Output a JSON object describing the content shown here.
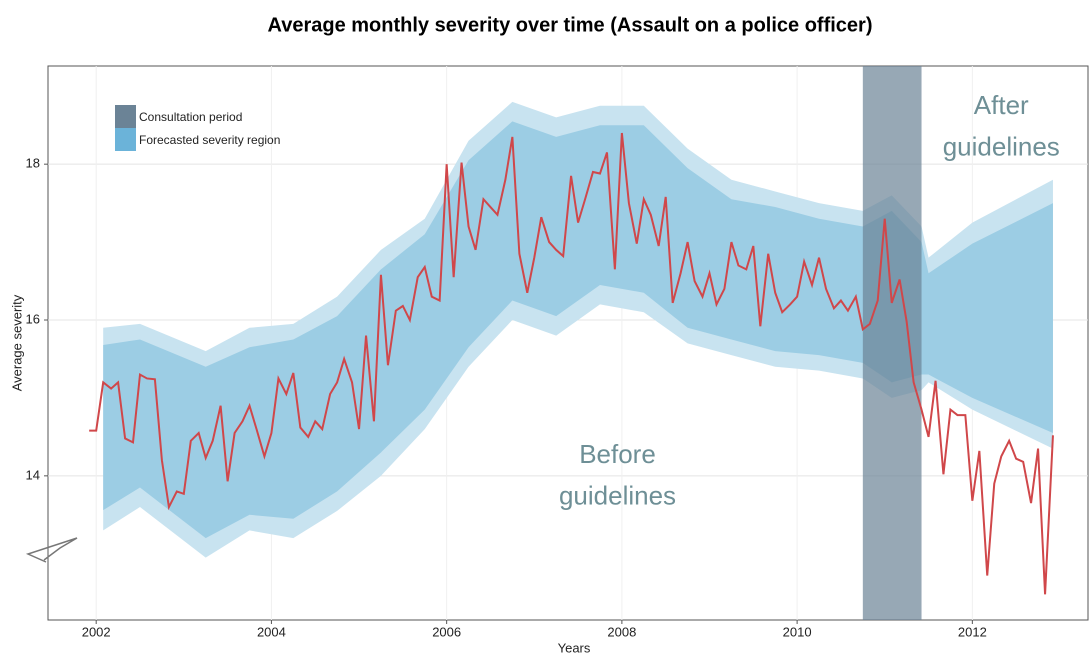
{
  "chart_data": {
    "type": "line",
    "title": "Average monthly severity over time (Assault on a police officer)",
    "xlabel": "Years",
    "ylabel": "Average severity",
    "xlim": [
      2001.45,
      2013.32
    ],
    "ylim": [
      12.15,
      19.26
    ],
    "xticks": [
      2002,
      2004,
      2006,
      2008,
      2010,
      2012
    ],
    "yticks": [
      14,
      16,
      18
    ],
    "grid": true,
    "color": "#d0474a",
    "x": [
      2001.92,
      2002.0,
      2002.08,
      2002.17,
      2002.25,
      2002.33,
      2002.42,
      2002.5,
      2002.58,
      2002.67,
      2002.75,
      2002.83,
      2002.92,
      2003.0,
      2003.08,
      2003.17,
      2003.25,
      2003.33,
      2003.42,
      2003.5,
      2003.58,
      2003.67,
      2003.75,
      2003.83,
      2003.92,
      2004.0,
      2004.08,
      2004.17,
      2004.25,
      2004.33,
      2004.42,
      2004.5,
      2004.58,
      2004.67,
      2004.75,
      2004.83,
      2004.92,
      2005.0,
      2005.08,
      2005.17,
      2005.25,
      2005.33,
      2005.42,
      2005.5,
      2005.58,
      2005.67,
      2005.75,
      2005.83,
      2005.92,
      2006.0,
      2006.08,
      2006.17,
      2006.25,
      2006.33,
      2006.42,
      2006.5,
      2006.58,
      2006.67,
      2006.75,
      2006.83,
      2006.92,
      2007.0,
      2007.08,
      2007.17,
      2007.25,
      2007.33,
      2007.42,
      2007.5,
      2007.58,
      2007.67,
      2007.75,
      2007.83,
      2007.92,
      2008.0,
      2008.08,
      2008.17,
      2008.25,
      2008.33,
      2008.42,
      2008.5,
      2008.58,
      2008.67,
      2008.75,
      2008.83,
      2008.92,
      2009.0,
      2009.08,
      2009.17,
      2009.25,
      2009.33,
      2009.42,
      2009.5,
      2009.58,
      2009.67,
      2009.75,
      2009.83,
      2009.92,
      2010.0,
      2010.08,
      2010.17,
      2010.25,
      2010.33,
      2010.42,
      2010.5,
      2010.58,
      2010.67,
      2010.75,
      2010.83,
      2010.92,
      2011.0,
      2011.08,
      2011.17,
      2011.25,
      2011.33,
      2011.42,
      2011.5,
      2011.58,
      2011.67,
      2011.75,
      2011.83,
      2011.92,
      2012.0,
      2012.08,
      2012.17,
      2012.25,
      2012.33,
      2012.42,
      2012.5,
      2012.58,
      2012.67,
      2012.75,
      2012.83,
      2012.92
    ],
    "values": [
      14.58,
      14.58,
      15.2,
      15.12,
      15.2,
      14.48,
      14.43,
      15.3,
      15.25,
      15.24,
      14.2,
      13.6,
      13.8,
      13.77,
      14.45,
      14.55,
      14.23,
      14.45,
      14.9,
      13.93,
      14.55,
      14.7,
      14.9,
      14.6,
      14.25,
      14.55,
      15.25,
      15.05,
      15.32,
      14.62,
      14.5,
      14.7,
      14.6,
      15.05,
      15.2,
      15.5,
      15.2,
      14.6,
      15.8,
      14.7,
      16.58,
      15.42,
      16.12,
      16.18,
      16.0,
      16.55,
      16.68,
      16.3,
      16.25,
      18.0,
      16.55,
      18.02,
      17.2,
      16.9,
      17.55,
      17.45,
      17.35,
      17.8,
      18.35,
      16.85,
      16.35,
      16.8,
      17.32,
      17.0,
      16.9,
      16.82,
      17.85,
      17.25,
      17.55,
      17.9,
      17.88,
      18.15,
      16.65,
      18.4,
      17.5,
      16.98,
      17.55,
      17.35,
      16.95,
      17.58,
      16.22,
      16.6,
      17.0,
      16.5,
      16.3,
      16.6,
      16.2,
      16.4,
      17.0,
      16.7,
      16.65,
      16.95,
      15.92,
      16.85,
      16.35,
      16.1,
      16.2,
      16.3,
      16.75,
      16.45,
      16.8,
      16.4,
      16.15,
      16.25,
      16.12,
      16.3,
      15.88,
      15.95,
      16.25,
      17.3,
      16.22,
      16.52,
      15.98,
      15.2,
      14.85,
      14.5,
      15.22,
      14.02,
      14.85,
      14.78,
      14.78,
      13.68,
      14.32,
      12.72,
      13.9,
      14.25,
      14.45,
      14.22,
      14.18,
      13.65,
      14.35,
      12.48,
      14.52
    ],
    "forecast": {
      "name": "Forecasted severity region",
      "color": "#6bb3d9",
      "inner_color": "#9ccde4",
      "outer_color": "#c8e3f0",
      "x": [
        2002.08,
        2002.5,
        2003.25,
        2003.75,
        2004.25,
        2004.75,
        2005.25,
        2005.75,
        2006.25,
        2006.75,
        2007.25,
        2007.75,
        2008.25,
        2008.75,
        2009.25,
        2009.75,
        2010.25,
        2010.75,
        2011.08,
        2011.42,
        2011.5,
        2012.0,
        2012.92
      ],
      "outer_upper": [
        15.9,
        15.95,
        15.6,
        15.9,
        15.95,
        16.3,
        16.9,
        17.3,
        18.3,
        18.8,
        18.6,
        18.75,
        18.75,
        18.2,
        17.8,
        17.65,
        17.5,
        17.4,
        17.6,
        17.2,
        16.8,
        17.25,
        17.8
      ],
      "inner_upper": [
        15.68,
        15.75,
        15.4,
        15.65,
        15.75,
        16.05,
        16.65,
        17.1,
        18.05,
        18.55,
        18.35,
        18.5,
        18.5,
        17.95,
        17.55,
        17.45,
        17.3,
        17.2,
        17.4,
        17.0,
        16.6,
        16.98,
        17.5
      ],
      "inner_lower": [
        13.56,
        13.85,
        13.2,
        13.5,
        13.45,
        13.8,
        14.3,
        14.85,
        15.65,
        16.25,
        16.05,
        16.45,
        16.35,
        15.9,
        15.75,
        15.6,
        15.55,
        15.45,
        15.2,
        15.3,
        15.3,
        15.0,
        14.55
      ],
      "outer_lower": [
        13.3,
        13.6,
        12.95,
        13.3,
        13.2,
        13.55,
        14.0,
        14.6,
        15.4,
        16.0,
        15.8,
        16.2,
        16.1,
        15.7,
        15.55,
        15.4,
        15.35,
        15.25,
        15.0,
        15.1,
        15.2,
        14.85,
        14.35
      ]
    },
    "shade": {
      "name": "Consultation period",
      "color": "#6b8396",
      "x0": 2010.75,
      "x1": 2011.42
    },
    "annotations": [
      {
        "text": "Before",
        "x": 2007.95,
        "y": 14.25
      },
      {
        "text": "guidelines",
        "x": 2007.95,
        "y": 13.72
      },
      {
        "text": "After",
        "x": 2012.33,
        "y": 18.73
      },
      {
        "text": "guidelines",
        "x": 2012.33,
        "y": 18.2
      }
    ]
  }
}
